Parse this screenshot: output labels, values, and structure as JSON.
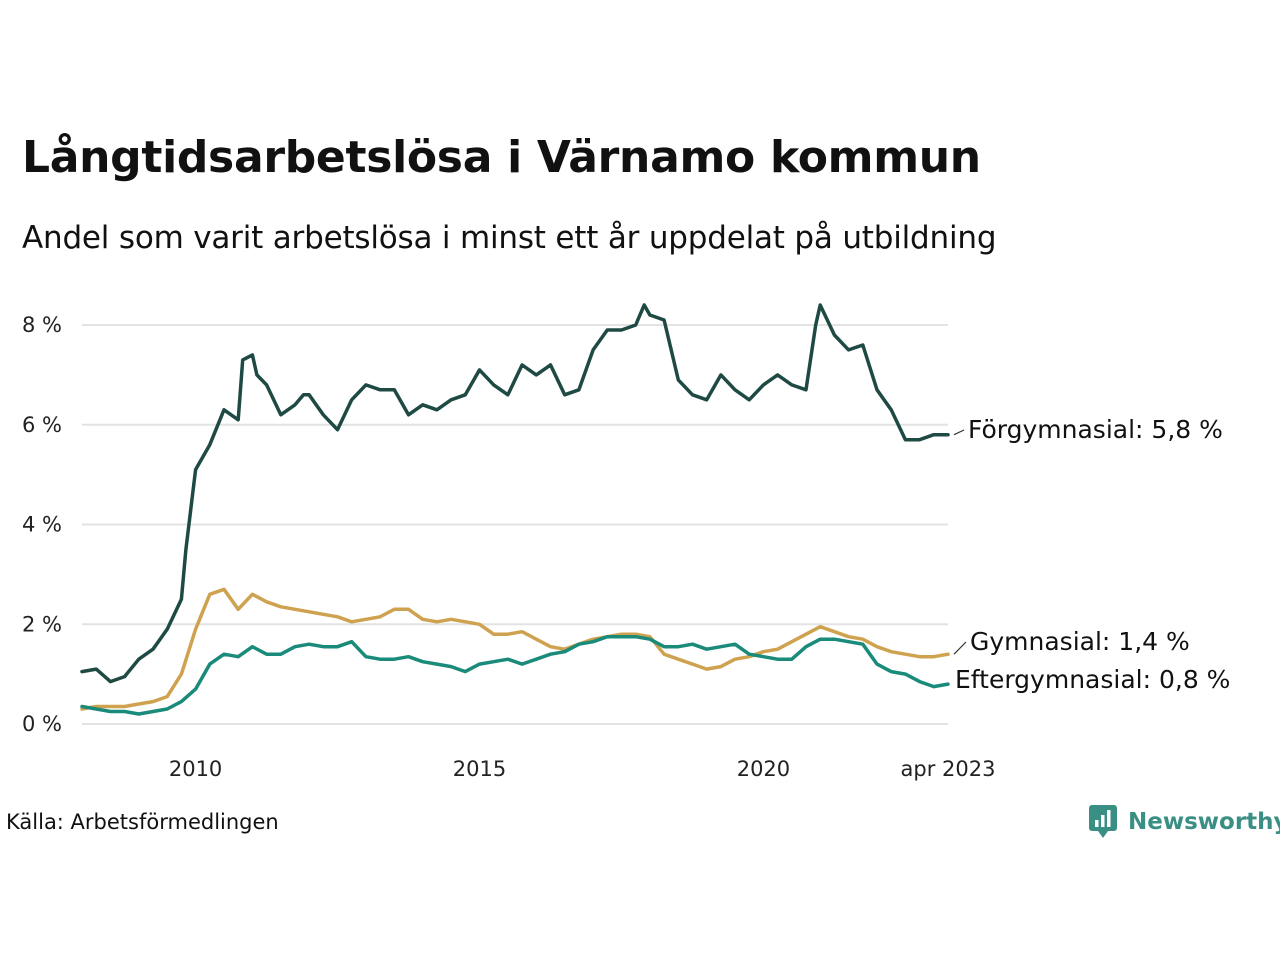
{
  "title": "Långtidsarbetslösa i Värnamo kommun",
  "subtitle": "Andel som varit arbetslösa i minst ett år uppdelat på utbildning",
  "source": "Källa: Arbetsförmedlingen",
  "brand": {
    "name": "Newsworthy",
    "color": "#3a8f84",
    "icon": "newsworthy-logo-icon"
  },
  "chart_data": {
    "type": "line",
    "title": "Långtidsarbetslösa i Värnamo kommun",
    "subtitle": "Andel som varit arbetslösa i minst ett år uppdelat på utbildning",
    "xlabel": "",
    "ylabel": "",
    "ylim": [
      0,
      8.5
    ],
    "y_ticks": [
      0,
      2,
      4,
      6,
      8
    ],
    "y_tick_labels": [
      "0 %",
      "2 %",
      "4 %",
      "6 %",
      "8 %"
    ],
    "x_ticks": [
      2010,
      2015,
      2020,
      2023.25
    ],
    "x_tick_labels": [
      "2010",
      "2015",
      "2020",
      "apr 2023"
    ],
    "xlim": [
      2008.0,
      2023.25
    ],
    "grid": "horizontal",
    "legend": "end-labels",
    "series": [
      {
        "name": "Förgymnasial",
        "end_label": "Förgymnasial: 5,8 %",
        "color": "#1f4a44",
        "x": [
          2008.0,
          2008.25,
          2008.5,
          2008.75,
          2009.0,
          2009.25,
          2009.5,
          2009.75,
          2009.83,
          2010.0,
          2010.25,
          2010.5,
          2010.75,
          2010.83,
          2011.0,
          2011.08,
          2011.25,
          2011.5,
          2011.75,
          2011.9,
          2012.0,
          2012.25,
          2012.5,
          2012.75,
          2013.0,
          2013.25,
          2013.5,
          2013.75,
          2014.0,
          2014.25,
          2014.5,
          2014.75,
          2015.0,
          2015.25,
          2015.5,
          2015.75,
          2016.0,
          2016.25,
          2016.5,
          2016.75,
          2017.0,
          2017.25,
          2017.5,
          2017.75,
          2017.9,
          2018.0,
          2018.25,
          2018.5,
          2018.75,
          2019.0,
          2019.25,
          2019.5,
          2019.75,
          2020.0,
          2020.25,
          2020.5,
          2020.75,
          2020.92,
          2021.0,
          2021.25,
          2021.5,
          2021.75,
          2022.0,
          2022.25,
          2022.5,
          2022.75,
          2023.0,
          2023.25
        ],
        "values": [
          1.05,
          1.1,
          0.85,
          0.95,
          1.3,
          1.5,
          1.9,
          2.5,
          3.5,
          5.1,
          5.6,
          6.3,
          6.1,
          7.3,
          7.4,
          7.0,
          6.8,
          6.2,
          6.4,
          6.6,
          6.6,
          6.2,
          5.9,
          6.5,
          6.8,
          6.7,
          6.7,
          6.2,
          6.4,
          6.3,
          6.5,
          6.6,
          7.1,
          6.8,
          6.6,
          7.2,
          7.0,
          7.2,
          6.6,
          6.7,
          7.5,
          7.9,
          7.9,
          8.0,
          8.4,
          8.2,
          8.1,
          6.9,
          6.6,
          6.5,
          7.0,
          6.7,
          6.5,
          6.8,
          7.0,
          6.8,
          6.7,
          8.0,
          8.4,
          7.8,
          7.5,
          7.6,
          6.7,
          6.3,
          5.7,
          5.7,
          5.8,
          5.8
        ]
      },
      {
        "name": "Gymnasial",
        "end_label": "Gymnasial: 1,4 %",
        "color": "#cfa24f",
        "x": [
          2008.0,
          2008.25,
          2008.5,
          2008.75,
          2009.0,
          2009.25,
          2009.5,
          2009.75,
          2010.0,
          2010.25,
          2010.5,
          2010.75,
          2011.0,
          2011.25,
          2011.5,
          2011.75,
          2012.0,
          2012.25,
          2012.5,
          2012.75,
          2013.0,
          2013.25,
          2013.5,
          2013.75,
          2014.0,
          2014.25,
          2014.5,
          2014.75,
          2015.0,
          2015.25,
          2015.5,
          2015.75,
          2016.0,
          2016.25,
          2016.5,
          2016.75,
          2017.0,
          2017.25,
          2017.5,
          2017.75,
          2018.0,
          2018.25,
          2018.5,
          2018.75,
          2019.0,
          2019.25,
          2019.5,
          2019.75,
          2020.0,
          2020.25,
          2020.5,
          2020.75,
          2021.0,
          2021.25,
          2021.5,
          2021.75,
          2022.0,
          2022.25,
          2022.5,
          2022.75,
          2023.0,
          2023.25
        ],
        "values": [
          0.3,
          0.35,
          0.35,
          0.35,
          0.4,
          0.45,
          0.55,
          1.0,
          1.9,
          2.6,
          2.7,
          2.3,
          2.6,
          2.45,
          2.35,
          2.3,
          2.25,
          2.2,
          2.15,
          2.05,
          2.1,
          2.15,
          2.3,
          2.3,
          2.1,
          2.05,
          2.1,
          2.05,
          2.0,
          1.8,
          1.8,
          1.85,
          1.7,
          1.55,
          1.5,
          1.6,
          1.7,
          1.75,
          1.8,
          1.8,
          1.75,
          1.4,
          1.3,
          1.2,
          1.1,
          1.15,
          1.3,
          1.35,
          1.45,
          1.5,
          1.65,
          1.8,
          1.95,
          1.85,
          1.75,
          1.7,
          1.55,
          1.45,
          1.4,
          1.35,
          1.35,
          1.4
        ]
      },
      {
        "name": "Eftergymnasial",
        "end_label": "Eftergymnasial: 0,8 %",
        "color": "#1a8a7a",
        "x": [
          2008.0,
          2008.25,
          2008.5,
          2008.75,
          2009.0,
          2009.25,
          2009.5,
          2009.75,
          2010.0,
          2010.25,
          2010.5,
          2010.75,
          2011.0,
          2011.25,
          2011.5,
          2011.75,
          2012.0,
          2012.25,
          2012.5,
          2012.75,
          2013.0,
          2013.25,
          2013.5,
          2013.75,
          2014.0,
          2014.25,
          2014.5,
          2014.75,
          2015.0,
          2015.25,
          2015.5,
          2015.75,
          2016.0,
          2016.25,
          2016.5,
          2016.75,
          2017.0,
          2017.25,
          2017.5,
          2017.75,
          2018.0,
          2018.25,
          2018.5,
          2018.75,
          2019.0,
          2019.25,
          2019.5,
          2019.75,
          2020.0,
          2020.25,
          2020.5,
          2020.75,
          2021.0,
          2021.25,
          2021.5,
          2021.75,
          2022.0,
          2022.25,
          2022.5,
          2022.75,
          2023.0,
          2023.25
        ],
        "values": [
          0.35,
          0.3,
          0.25,
          0.25,
          0.2,
          0.25,
          0.3,
          0.45,
          0.7,
          1.2,
          1.4,
          1.35,
          1.55,
          1.4,
          1.4,
          1.55,
          1.6,
          1.55,
          1.55,
          1.65,
          1.35,
          1.3,
          1.3,
          1.35,
          1.25,
          1.2,
          1.15,
          1.05,
          1.2,
          1.25,
          1.3,
          1.2,
          1.3,
          1.4,
          1.45,
          1.6,
          1.65,
          1.75,
          1.75,
          1.75,
          1.7,
          1.55,
          1.55,
          1.6,
          1.5,
          1.55,
          1.6,
          1.4,
          1.35,
          1.3,
          1.3,
          1.55,
          1.7,
          1.7,
          1.65,
          1.6,
          1.2,
          1.05,
          1.0,
          0.85,
          0.75,
          0.8
        ]
      }
    ]
  }
}
